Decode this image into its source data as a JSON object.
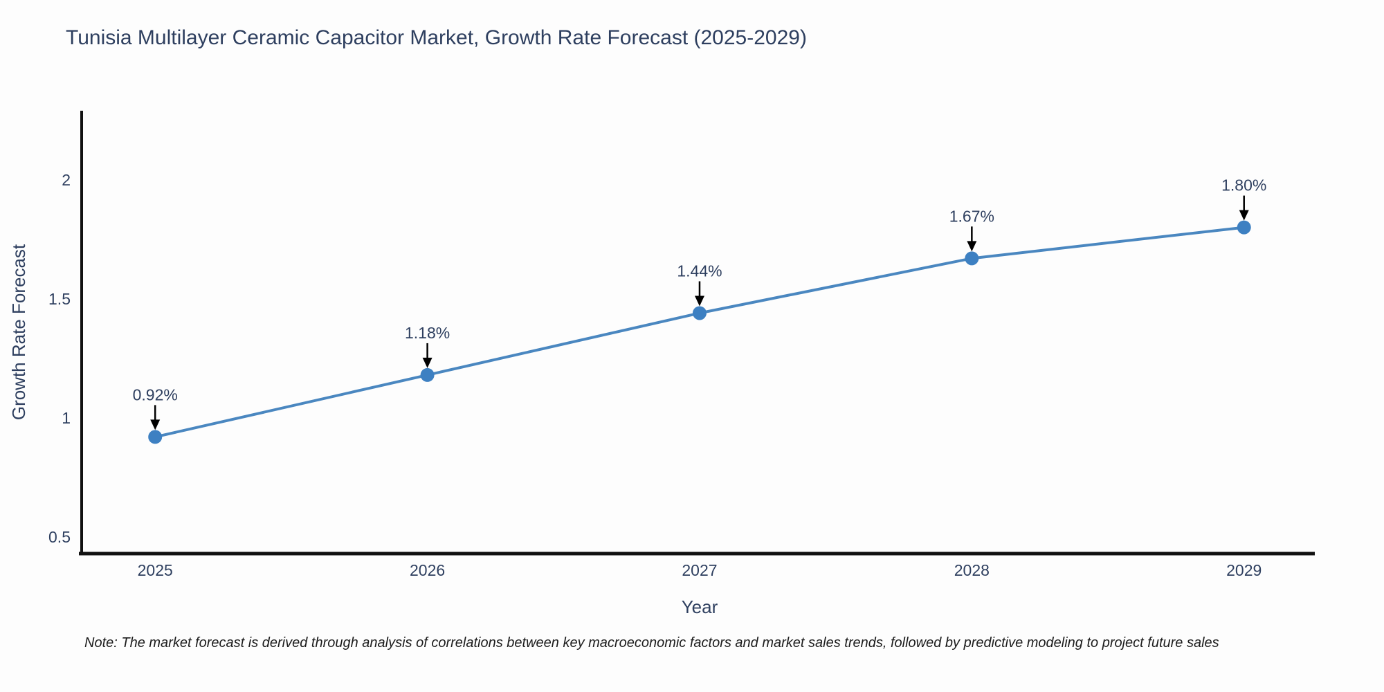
{
  "header": {
    "title": "Tunisia Multilayer Ceramic Capacitor Market, Growth Rate Forecast (2025-2029)"
  },
  "footer": {
    "note": "Note: The market forecast is derived through analysis of correlations between key macroeconomic factors and market sales trends, followed by predictive modeling to project future sales"
  },
  "chart_data": {
    "type": "line",
    "title": "Tunisia Multilayer Ceramic Capacitor Market, Growth Rate Forecast (2025-2029)",
    "x": [
      2025,
      2026,
      2027,
      2028,
      2029
    ],
    "x_tick_labels": [
      "2025",
      "2026",
      "2027",
      "2028",
      "2029"
    ],
    "values": [
      0.92,
      1.18,
      1.44,
      1.67,
      1.8
    ],
    "point_labels": [
      "0.92%",
      "1.18%",
      "1.44%",
      "1.67%",
      "1.80%"
    ],
    "xlabel": "Year",
    "ylabel": "Growth Rate Forecast",
    "yticks": [
      0.5,
      1,
      1.5,
      2
    ],
    "ytick_labels": [
      "0.5",
      "1",
      "1.5",
      "2"
    ],
    "xlim": [
      2024.73,
      2029.26
    ],
    "ylim": [
      0.43,
      2.29
    ],
    "grid": false,
    "legend_position": "none",
    "colors": {
      "line": "#4a87c0",
      "marker": "#3d80c2",
      "axis": "#111111",
      "text": "#2e3f5f",
      "annotation_arrow": "#000000",
      "note_text": "#1c1c1c"
    }
  }
}
